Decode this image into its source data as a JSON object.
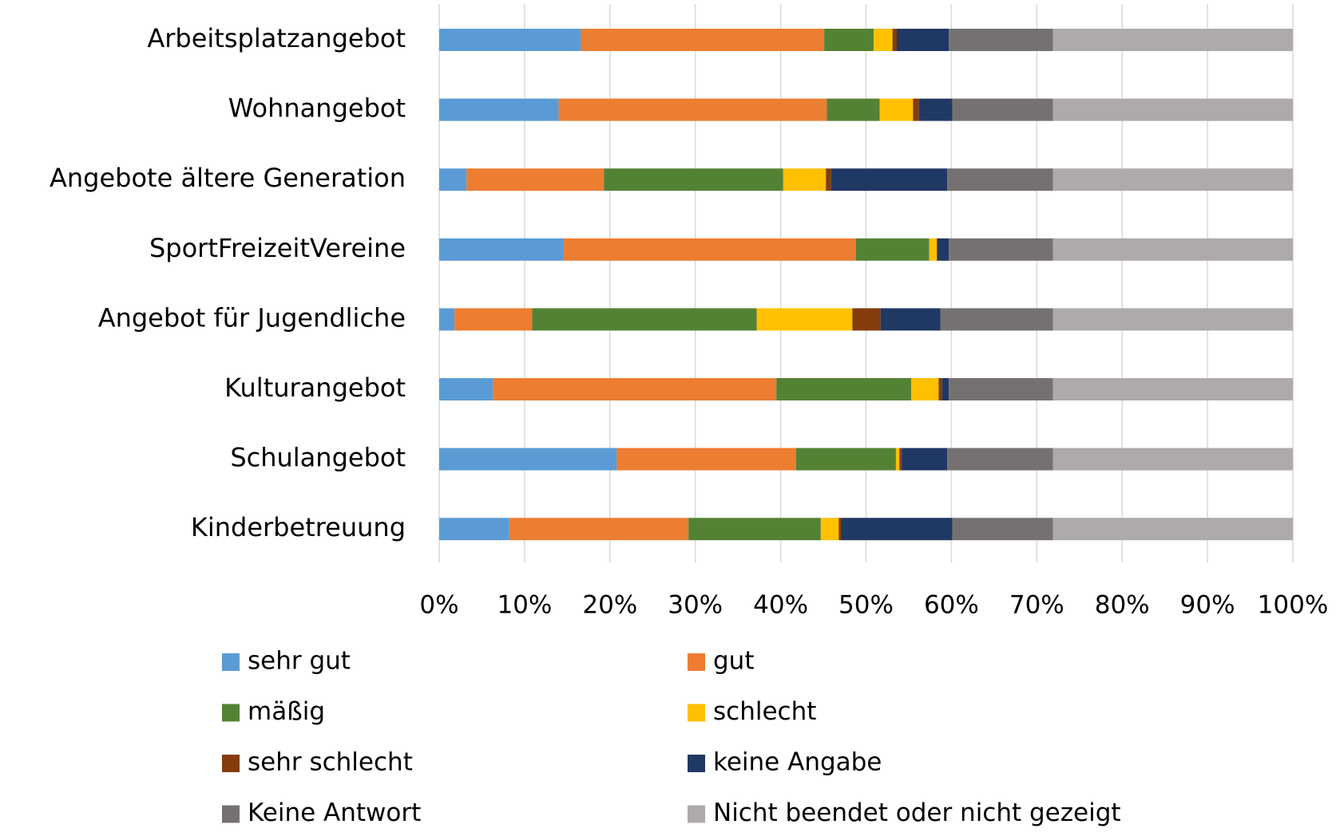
{
  "chart_data": {
    "type": "stacked_barh",
    "categories": [
      "Arbeitsplatzangebot",
      "Wohnangebot",
      "Angebote ältere Generation",
      "SportFreizeitVereine",
      "Angebot für Jugendliche",
      "Kulturangebot",
      "Schulangebot",
      "Kinderbetreuung"
    ],
    "series": [
      {
        "name": "sehr gut",
        "color": "#5b9bd5",
        "values": [
          16.6,
          14.0,
          3.2,
          14.6,
          1.8,
          6.3,
          20.8,
          8.2
        ]
      },
      {
        "name": "gut",
        "color": "#ed7d31",
        "values": [
          28.5,
          31.4,
          16.1,
          34.2,
          9.1,
          33.2,
          21.0,
          21.0
        ]
      },
      {
        "name": "mäßig",
        "color": "#548235",
        "values": [
          5.8,
          6.2,
          21.0,
          8.6,
          26.3,
          15.8,
          11.7,
          15.5
        ]
      },
      {
        "name": "schlecht",
        "color": "#ffc000",
        "values": [
          2.2,
          3.9,
          5.0,
          0.9,
          11.2,
          3.2,
          0.4,
          2.1
        ]
      },
      {
        "name": "sehr schlecht",
        "color": "#843c0c",
        "values": [
          0.5,
          0.7,
          0.6,
          0,
          3.3,
          0.4,
          0.3,
          0.3
        ]
      },
      {
        "name": "keine Angabe",
        "color": "#203864",
        "values": [
          6.1,
          3.9,
          13.6,
          1.4,
          7.0,
          0.8,
          5.3,
          13.0
        ]
      },
      {
        "name": "Keine Antwort",
        "color": "#767171",
        "values": [
          12.2,
          11.8,
          12.4,
          12.2,
          13.2,
          12.2,
          12.4,
          11.8
        ]
      },
      {
        "name": "Nicht beendet oder nicht gezeigt",
        "color": "#aeaaaa",
        "values": [
          28.1,
          28.1,
          28.1,
          28.1,
          28.1,
          28.1,
          28.1,
          28.1
        ]
      }
    ],
    "xlim": [
      0,
      100
    ],
    "xticks": [
      {
        "value": 0,
        "label": "0%"
      },
      {
        "value": 10,
        "label": "10%"
      },
      {
        "value": 20,
        "label": "20%"
      },
      {
        "value": 30,
        "label": "30%"
      },
      {
        "value": 40,
        "label": "40%"
      },
      {
        "value": 50,
        "label": "50%"
      },
      {
        "value": 60,
        "label": "60%"
      },
      {
        "value": 70,
        "label": "70%"
      },
      {
        "value": 80,
        "label": "80%"
      },
      {
        "value": 90,
        "label": "90%"
      },
      {
        "value": 100,
        "label": "100%"
      }
    ],
    "grid": true,
    "legend": "bottom"
  }
}
